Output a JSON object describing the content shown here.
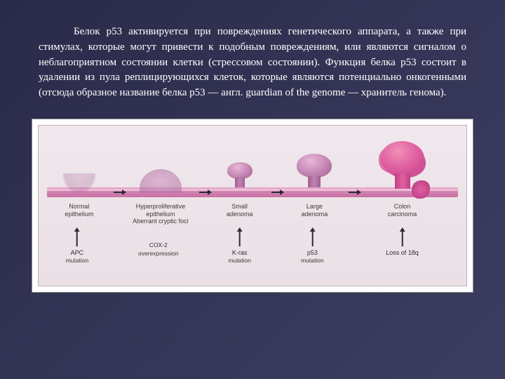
{
  "paragraph": "Белок p53 активируется при повреждениях генетического аппарата, а также при стимулах, которые могут привести к подобным повреждениям, или являются сигналом о неблагоприятном состоянии клетки (стрессовом состоянии). Функция белка p53 состоит в удалении из пула реплицирующихся клеток, которые являются потенциально онкогенными (отсюда образное название белка p53 — англ. guardian of the genome — хранитель генома).",
  "diagram": {
    "background_gradient": [
      "#f0e8ec",
      "#eae0e6"
    ],
    "baseline_color": "#d080b0",
    "stages": [
      {
        "id": "s1",
        "label_lines": [
          "Normal",
          "epithelium"
        ]
      },
      {
        "id": "s2",
        "label_lines": [
          "Hyperproliferative",
          "epithelium",
          "Aberrant cryptic foci"
        ]
      },
      {
        "id": "s3",
        "label_lines": [
          "Small",
          "adenoma"
        ]
      },
      {
        "id": "s4",
        "label_lines": [
          "Large",
          "adenoma"
        ]
      },
      {
        "id": "s5",
        "label_lines": [
          "Colon",
          "carcinoma"
        ]
      }
    ],
    "mutations": [
      {
        "id": "m1",
        "lines": [
          "APC",
          "mutation"
        ]
      },
      {
        "id": "m1b",
        "lines": [
          "COX-2",
          "overexpression"
        ],
        "no_arrow": true
      },
      {
        "id": "m2",
        "lines": [
          "K-ras",
          "mutation"
        ]
      },
      {
        "id": "m3",
        "lines": [
          "p53",
          "mutation"
        ]
      },
      {
        "id": "m4",
        "lines": [
          "Loss of 18q"
        ]
      }
    ],
    "colors": {
      "text": "#3a3a3a",
      "arrow": "#2a2a3a",
      "growth_normal": "#c080b0",
      "growth_carcinoma": "#e060a0"
    },
    "font_sizes": {
      "paragraph": 15,
      "stage_label": 9,
      "mutation": 9
    }
  }
}
